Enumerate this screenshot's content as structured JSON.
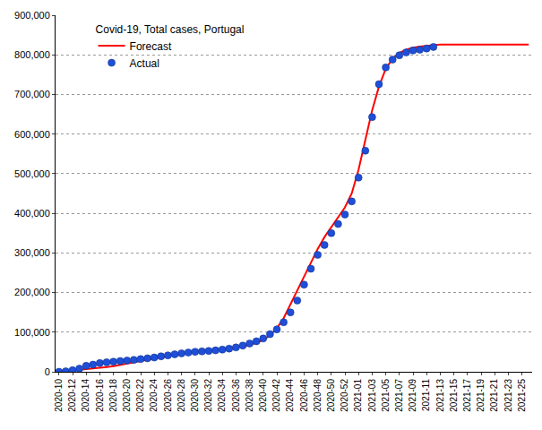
{
  "chart_data": {
    "type": "line",
    "title": "Covid-19, Total cases, Portugal",
    "categories": [
      "2020-10",
      null,
      "2020-12",
      null,
      "2020-14",
      null,
      "2020-16",
      null,
      "2020-18",
      null,
      "2020-20",
      null,
      "2020-22",
      null,
      "2020-24",
      null,
      "2020-26",
      null,
      "2020-28",
      null,
      "2020-30",
      null,
      "2020-32",
      null,
      "2020-34",
      null,
      "2020-36",
      null,
      "2020-38",
      null,
      "2020-40",
      null,
      "2020-42",
      null,
      "2020-44",
      null,
      "2020-46",
      null,
      "2020-48",
      null,
      "2020-50",
      null,
      "2020-52",
      null,
      "2021-01",
      null,
      "2021-03",
      null,
      "2021-05",
      null,
      "2021-07",
      null,
      "2021-09",
      null,
      "2021-11",
      null,
      "2021-13",
      null,
      "2021-15",
      null,
      "2021-17",
      null,
      "2021-19",
      null,
      "2021-21",
      null,
      "2021-23",
      null,
      "2021-25",
      null
    ],
    "series": [
      {
        "name": "Forecast",
        "type": "line",
        "color": "#ff0000",
        "line_style": "solid",
        "values": [
          0,
          1500,
          3000,
          4500,
          6000,
          8000,
          10000,
          12000,
          14000,
          17000,
          20000,
          23500,
          27000,
          30500,
          34000,
          37000,
          40000,
          43000,
          46000,
          48500,
          51000,
          52500,
          54000,
          55500,
          57000,
          59000,
          61000,
          64500,
          68000,
          73500,
          80000,
          92000,
          110000,
          135000,
          170000,
          205000,
          240000,
          275000,
          310000,
          340000,
          365000,
          390000,
          415000,
          450000,
          510000,
          585000,
          660000,
          720000,
          765000,
          790000,
          805000,
          813000,
          818000,
          821000,
          823000,
          825000,
          826000,
          826000,
          826000,
          826000,
          826000,
          826000,
          826000,
          826000,
          826000,
          826000,
          826000,
          826000,
          826000,
          826000
        ]
      },
      {
        "name": "Actual",
        "type": "scatter",
        "color": "#1f4fd8",
        "marker": "circle",
        "values": [
          0,
          1000,
          4000,
          8000,
          15000,
          18000,
          22000,
          24000,
          25500,
          27000,
          28500,
          30000,
          32000,
          34000,
          36000,
          39000,
          41500,
          44000,
          46500,
          48500,
          50500,
          51500,
          52500,
          54000,
          56000,
          58500,
          61500,
          66000,
          71500,
          77000,
          84000,
          95000,
          107000,
          125000,
          150000,
          180000,
          220000,
          260000,
          295000,
          320000,
          350000,
          373000,
          397000,
          430000,
          490000,
          558000,
          643000,
          726000,
          768000,
          788000,
          799000,
          806000,
          811000,
          813000,
          816000,
          820000,
          null,
          null,
          null,
          null,
          null,
          null,
          null,
          null,
          null,
          null,
          null,
          null,
          null,
          null
        ]
      }
    ],
    "ylim": [
      0,
      900000
    ],
    "yticks": [
      0,
      {
        "value": 100000,
        "label": "100,000"
      },
      {
        "value": 200000,
        "label": "200,000"
      },
      {
        "value": 300000,
        "label": "300,000"
      },
      {
        "value": 400000,
        "label": "400,000"
      },
      {
        "value": 500000,
        "label": "500,000"
      },
      {
        "value": 600000,
        "label": "600,000"
      },
      {
        "value": 700000,
        "label": "700,000"
      },
      {
        "value": 800000,
        "label": "800,000"
      },
      {
        "value": 900000,
        "label": "900,000"
      }
    ],
    "grid": true,
    "legend": "upper left"
  }
}
